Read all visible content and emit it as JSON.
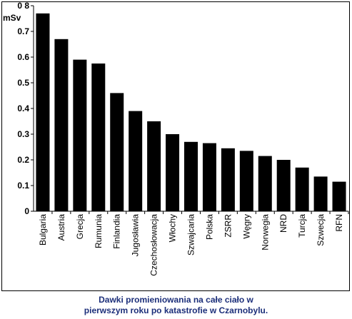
{
  "chart_data": {
    "type": "bar",
    "ylabel": "mSv",
    "ylim": [
      0,
      0.8
    ],
    "yticks": [
      "0",
      "0.1",
      "0.2",
      "0.3",
      "0.4",
      "0.5",
      "0.6",
      "0.7",
      "0 8"
    ],
    "categories": [
      "Bulgaria",
      "Austria",
      "Grecja",
      "Rumunia",
      "Finlandia",
      "Jugosławia",
      "Czechosłowacja",
      "Włochy",
      "Szwajcaria",
      "Polska",
      "ZSRR",
      "Węgry",
      "Norwegia",
      "NRD",
      "Turcja",
      "Szwecja",
      "RFN"
    ],
    "values": [
      0.77,
      0.67,
      0.59,
      0.575,
      0.46,
      0.39,
      0.35,
      0.3,
      0.27,
      0.265,
      0.245,
      0.235,
      0.215,
      0.2,
      0.17,
      0.135,
      0.115
    ],
    "bar_color": "#000000",
    "grid": false
  },
  "caption": {
    "line1": "Dawki promieniowania na całe ciało w",
    "line2": "pierwszym roku po katastrofie w Czarnobylu.",
    "color": "#1c2f7a"
  }
}
